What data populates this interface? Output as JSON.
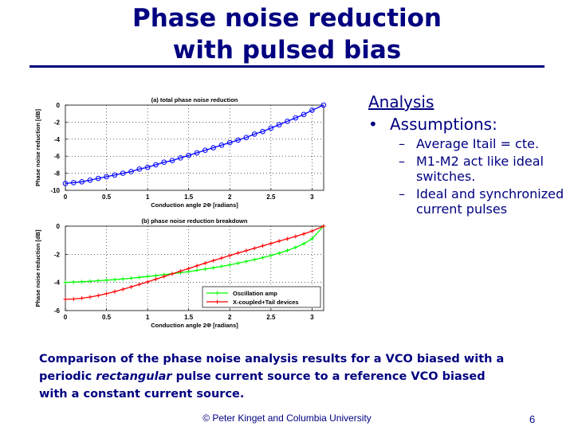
{
  "slide": {
    "title_line1": "Phase noise reduction",
    "title_line2": "with pulsed bias",
    "analysis_heading": "Analysis",
    "bullet": "Assumptions:",
    "subbullets": [
      {
        "dash": "–",
        "text": "Average Itail = cte."
      },
      {
        "dash": "–",
        "text": "M1-M2 act like ideal switches."
      },
      {
        "dash": "–",
        "text": "Ideal and synchronized current pulses"
      }
    ],
    "caption_before": "Comparison of the phase noise analysis results for a VCO biased with a periodic ",
    "caption_emph": "rectangular",
    "caption_after": " pulse current source to a reference VCO biased with a constant current source.",
    "footer": "© Peter Kinget and Columbia University",
    "page_number": "6"
  },
  "chart_data": [
    {
      "type": "line",
      "title": "(a) total phase noise reduction",
      "xlabel": "Conduction angle 2Φ [radians]",
      "ylabel": "Phase noise reduction [dB]",
      "xlim": [
        0,
        3.14159
      ],
      "ylim": [
        -10,
        0
      ],
      "xticks": [
        0,
        0.5,
        1,
        1.5,
        2,
        2.5,
        3
      ],
      "xtick_labels": [
        "0",
        "0.5",
        "1",
        "1.5",
        "2",
        "2.5",
        "3"
      ],
      "yticks": [
        -10,
        -8,
        -6,
        -4,
        -2,
        0
      ],
      "ytick_labels": [
        "-10",
        "-8",
        "-6",
        "-4",
        "-2",
        "0"
      ],
      "grid": true,
      "series": [
        {
          "color": "#0000ff",
          "marker": "circle",
          "x": [
            0.0,
            0.1,
            0.2,
            0.3,
            0.4,
            0.5,
            0.6,
            0.7,
            0.8,
            0.9,
            1.0,
            1.1,
            1.2,
            1.3,
            1.4,
            1.5,
            1.6,
            1.7,
            1.8,
            1.9,
            2.0,
            2.1,
            2.2,
            2.3,
            2.4,
            2.5,
            2.6,
            2.7,
            2.8,
            2.9,
            3.0,
            3.14
          ],
          "y": [
            -9.2,
            -9.1,
            -9.0,
            -8.8,
            -8.6,
            -8.4,
            -8.2,
            -8.0,
            -7.8,
            -7.5,
            -7.3,
            -7.0,
            -6.7,
            -6.5,
            -6.2,
            -5.9,
            -5.6,
            -5.3,
            -5.0,
            -4.7,
            -4.4,
            -4.1,
            -3.8,
            -3.4,
            -3.1,
            -2.7,
            -2.3,
            -1.9,
            -1.5,
            -1.1,
            -0.6,
            0.0
          ]
        }
      ]
    },
    {
      "type": "line",
      "title": "(b) phase noise reduction breakdown",
      "xlabel": "Conduction angle 2Φ [radians]",
      "ylabel": "Phase noise reduction [dB]",
      "xlim": [
        0,
        3.14159
      ],
      "ylim": [
        -6,
        0
      ],
      "xticks": [
        0,
        0.5,
        1,
        1.5,
        2,
        2.5,
        3
      ],
      "xtick_labels": [
        "0",
        "0.5",
        "1",
        "1.5",
        "2",
        "2.5",
        "3"
      ],
      "yticks": [
        -6,
        -4,
        -2,
        0
      ],
      "ytick_labels": [
        "-6",
        "-4",
        "-2",
        "0"
      ],
      "grid": true,
      "legend_position": "bottom-right",
      "series": [
        {
          "name": "Oscillation amp",
          "color": "#00ff00",
          "marker": "plus",
          "x": [
            0.0,
            0.1,
            0.2,
            0.3,
            0.4,
            0.5,
            0.6,
            0.7,
            0.8,
            0.9,
            1.0,
            1.1,
            1.2,
            1.3,
            1.4,
            1.5,
            1.6,
            1.7,
            1.8,
            1.9,
            2.0,
            2.1,
            2.2,
            2.3,
            2.4,
            2.5,
            2.6,
            2.7,
            2.8,
            2.9,
            3.0,
            3.14
          ],
          "y": [
            -4.0,
            -3.98,
            -3.95,
            -3.92,
            -3.88,
            -3.84,
            -3.8,
            -3.75,
            -3.7,
            -3.64,
            -3.58,
            -3.52,
            -3.45,
            -3.38,
            -3.31,
            -3.23,
            -3.14,
            -3.05,
            -2.96,
            -2.86,
            -2.75,
            -2.63,
            -2.51,
            -2.38,
            -2.24,
            -2.09,
            -1.92,
            -1.73,
            -1.51,
            -1.25,
            -0.9,
            0.0
          ]
        },
        {
          "name": "X-coupled+Tail devices",
          "color": "#ff0000",
          "marker": "plus",
          "x": [
            0.0,
            0.1,
            0.2,
            0.3,
            0.4,
            0.5,
            0.6,
            0.7,
            0.8,
            0.9,
            1.0,
            1.1,
            1.2,
            1.3,
            1.4,
            1.5,
            1.6,
            1.7,
            1.8,
            1.9,
            2.0,
            2.1,
            2.2,
            2.3,
            2.4,
            2.5,
            2.6,
            2.7,
            2.8,
            2.9,
            3.0,
            3.14
          ],
          "y": [
            -5.2,
            -5.18,
            -5.12,
            -5.04,
            -4.93,
            -4.8,
            -4.65,
            -4.49,
            -4.32,
            -4.14,
            -3.96,
            -3.77,
            -3.58,
            -3.39,
            -3.2,
            -3.01,
            -2.82,
            -2.63,
            -2.45,
            -2.27,
            -2.09,
            -1.91,
            -1.74,
            -1.57,
            -1.4,
            -1.23,
            -1.06,
            -0.9,
            -0.73,
            -0.55,
            -0.35,
            0.0
          ]
        }
      ]
    }
  ]
}
